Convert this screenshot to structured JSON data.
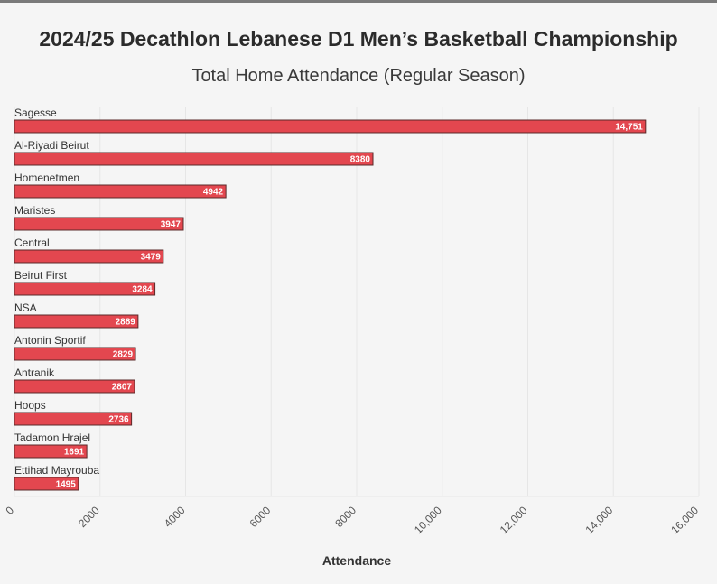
{
  "header": {
    "title": "2024/25 Decathlon Lebanese D1 Men’s Basketball Championship",
    "subtitle": "Total Home Attendance (Regular Season)"
  },
  "colors": {
    "bar": "#e3474f",
    "bar_stroke": "#5a2a2a",
    "grid": "#e6e6e6"
  },
  "chart_data": {
    "type": "bar",
    "orientation": "horizontal",
    "title": "2024/25 Decathlon Lebanese D1 Men’s Basketball Championship",
    "subtitle": "Total Home Attendance (Regular Season)",
    "xlabel": "Attendance",
    "ylabel": "",
    "xlim": [
      0,
      16000
    ],
    "x_ticks": [
      0,
      2000,
      4000,
      6000,
      8000,
      10000,
      12000,
      14000,
      16000
    ],
    "x_tick_labels": [
      "0",
      "2000",
      "4000",
      "6000",
      "8000",
      "10,000",
      "12,000",
      "14,000",
      "16,000"
    ],
    "grid": true,
    "legend": "none",
    "categories": [
      "Sagesse",
      "Al-Riyadi Beirut",
      "Homenetmen",
      "Maristes",
      "Central",
      "Beirut First",
      "NSA",
      "Antonin Sportif",
      "Antranik",
      "Hoops",
      "Tadamon Hrajel",
      "Ettihad Mayrouba"
    ],
    "values": [
      14751,
      8380,
      4942,
      3947,
      3479,
      3284,
      2889,
      2829,
      2807,
      2736,
      1691,
      1495
    ],
    "value_labels": [
      "14,751",
      "8380",
      "4942",
      "3947",
      "3479",
      "3284",
      "2889",
      "2829",
      "2807",
      "2736",
      "1691",
      "1495"
    ]
  }
}
